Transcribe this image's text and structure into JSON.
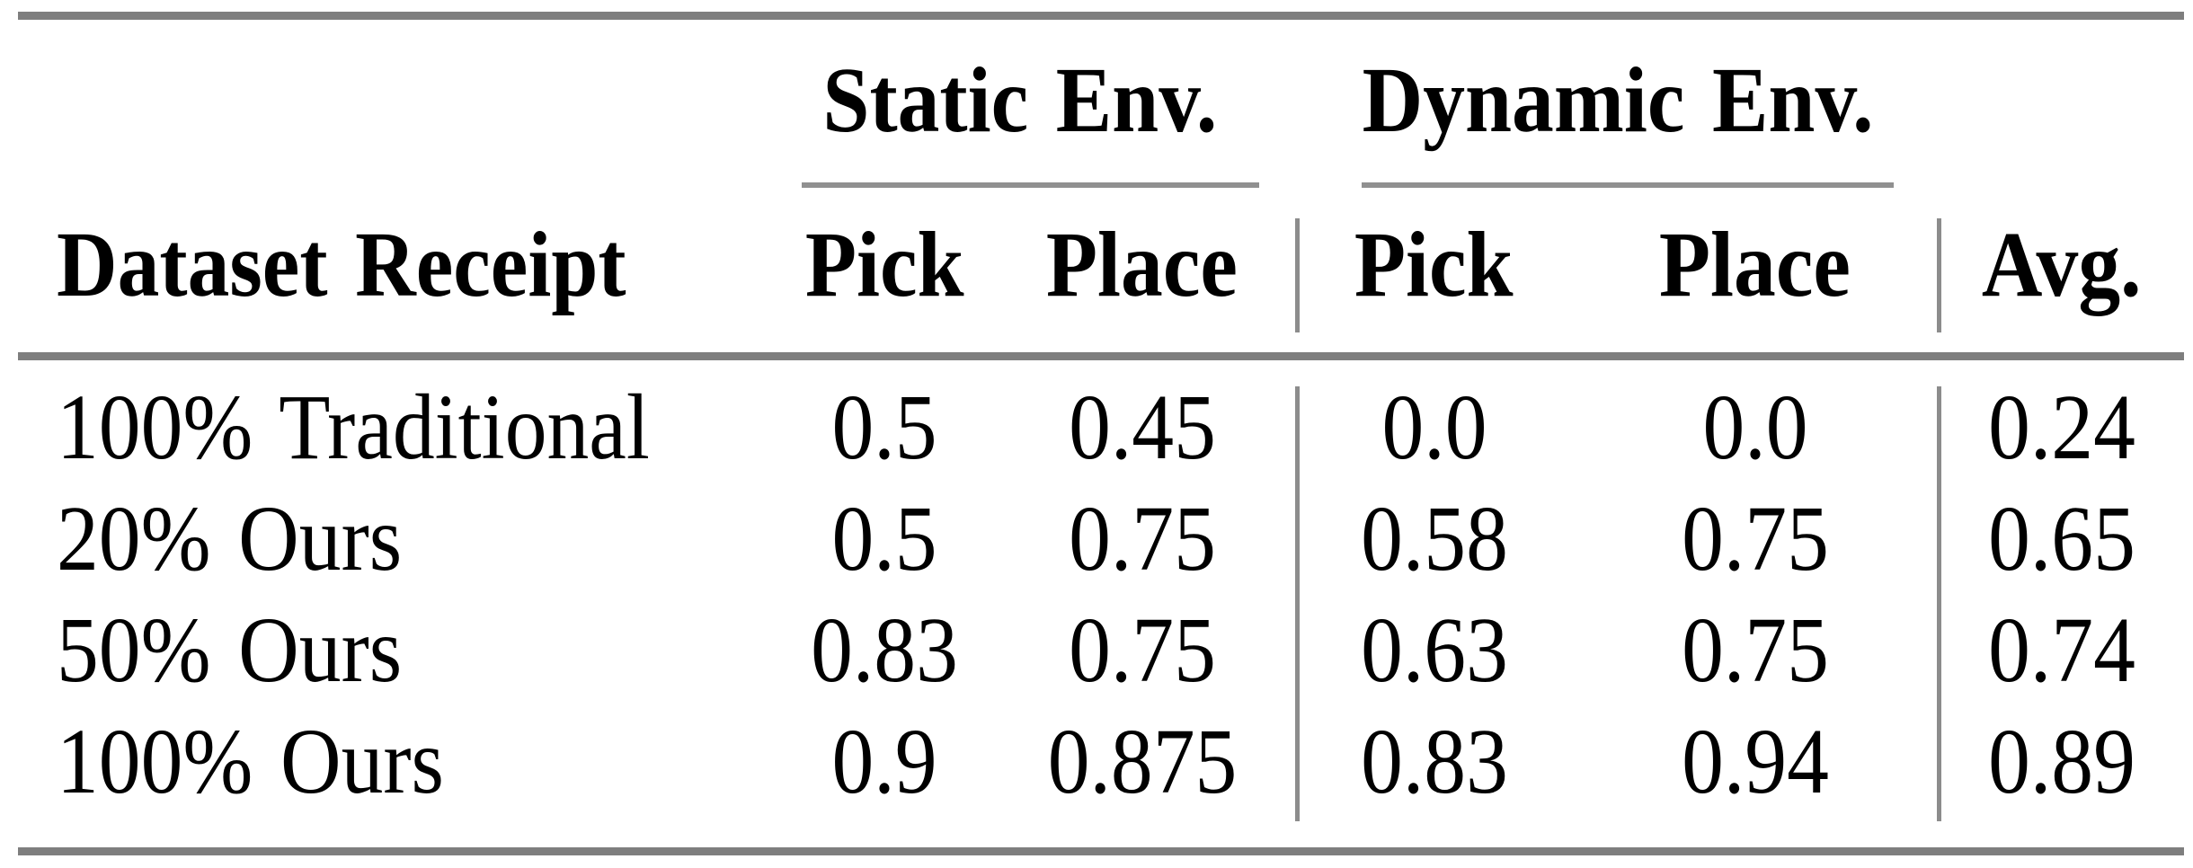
{
  "table": {
    "group_headers": {
      "static": "Static Env.",
      "dynamic": "Dynamic Env."
    },
    "column_headers": {
      "dataset": "Dataset Receipt",
      "static_pick": "Pick",
      "static_place": "Place",
      "dynamic_pick": "Pick",
      "dynamic_place": "Place",
      "avg": "Avg."
    },
    "rows": [
      {
        "label": "100% Traditional",
        "values": [
          "0.5",
          "0.45",
          "0.0",
          "0.0",
          "0.24"
        ]
      },
      {
        "label": "20% Ours",
        "values": [
          "0.5",
          "0.75",
          "0.58",
          "0.75",
          "0.65"
        ]
      },
      {
        "label": "50% Ours",
        "values": [
          "0.83",
          "0.75",
          "0.63",
          "0.75",
          "0.74"
        ]
      },
      {
        "label": "100% Ours",
        "values": [
          "0.9",
          "0.875",
          "0.83",
          "0.94",
          "0.89"
        ]
      }
    ]
  },
  "chart_data": {
    "type": "table",
    "columns": [
      "Dataset Receipt",
      "Static Env. Pick",
      "Static Env. Place",
      "Dynamic Env. Pick",
      "Dynamic Env. Place",
      "Avg."
    ],
    "rows": [
      [
        "100% Traditional",
        0.5,
        0.45,
        0.0,
        0.0,
        0.24
      ],
      [
        "20% Ours",
        0.5,
        0.75,
        0.58,
        0.75,
        0.65
      ],
      [
        "50% Ours",
        0.83,
        0.75,
        0.63,
        0.75,
        0.74
      ],
      [
        "100% Ours",
        0.9,
        0.875,
        0.83,
        0.94,
        0.89
      ]
    ]
  },
  "colors": {
    "rule_heavy": "#7e7e7e",
    "rule_light": "#909090",
    "text": "#000000",
    "background": "#ffffff"
  }
}
